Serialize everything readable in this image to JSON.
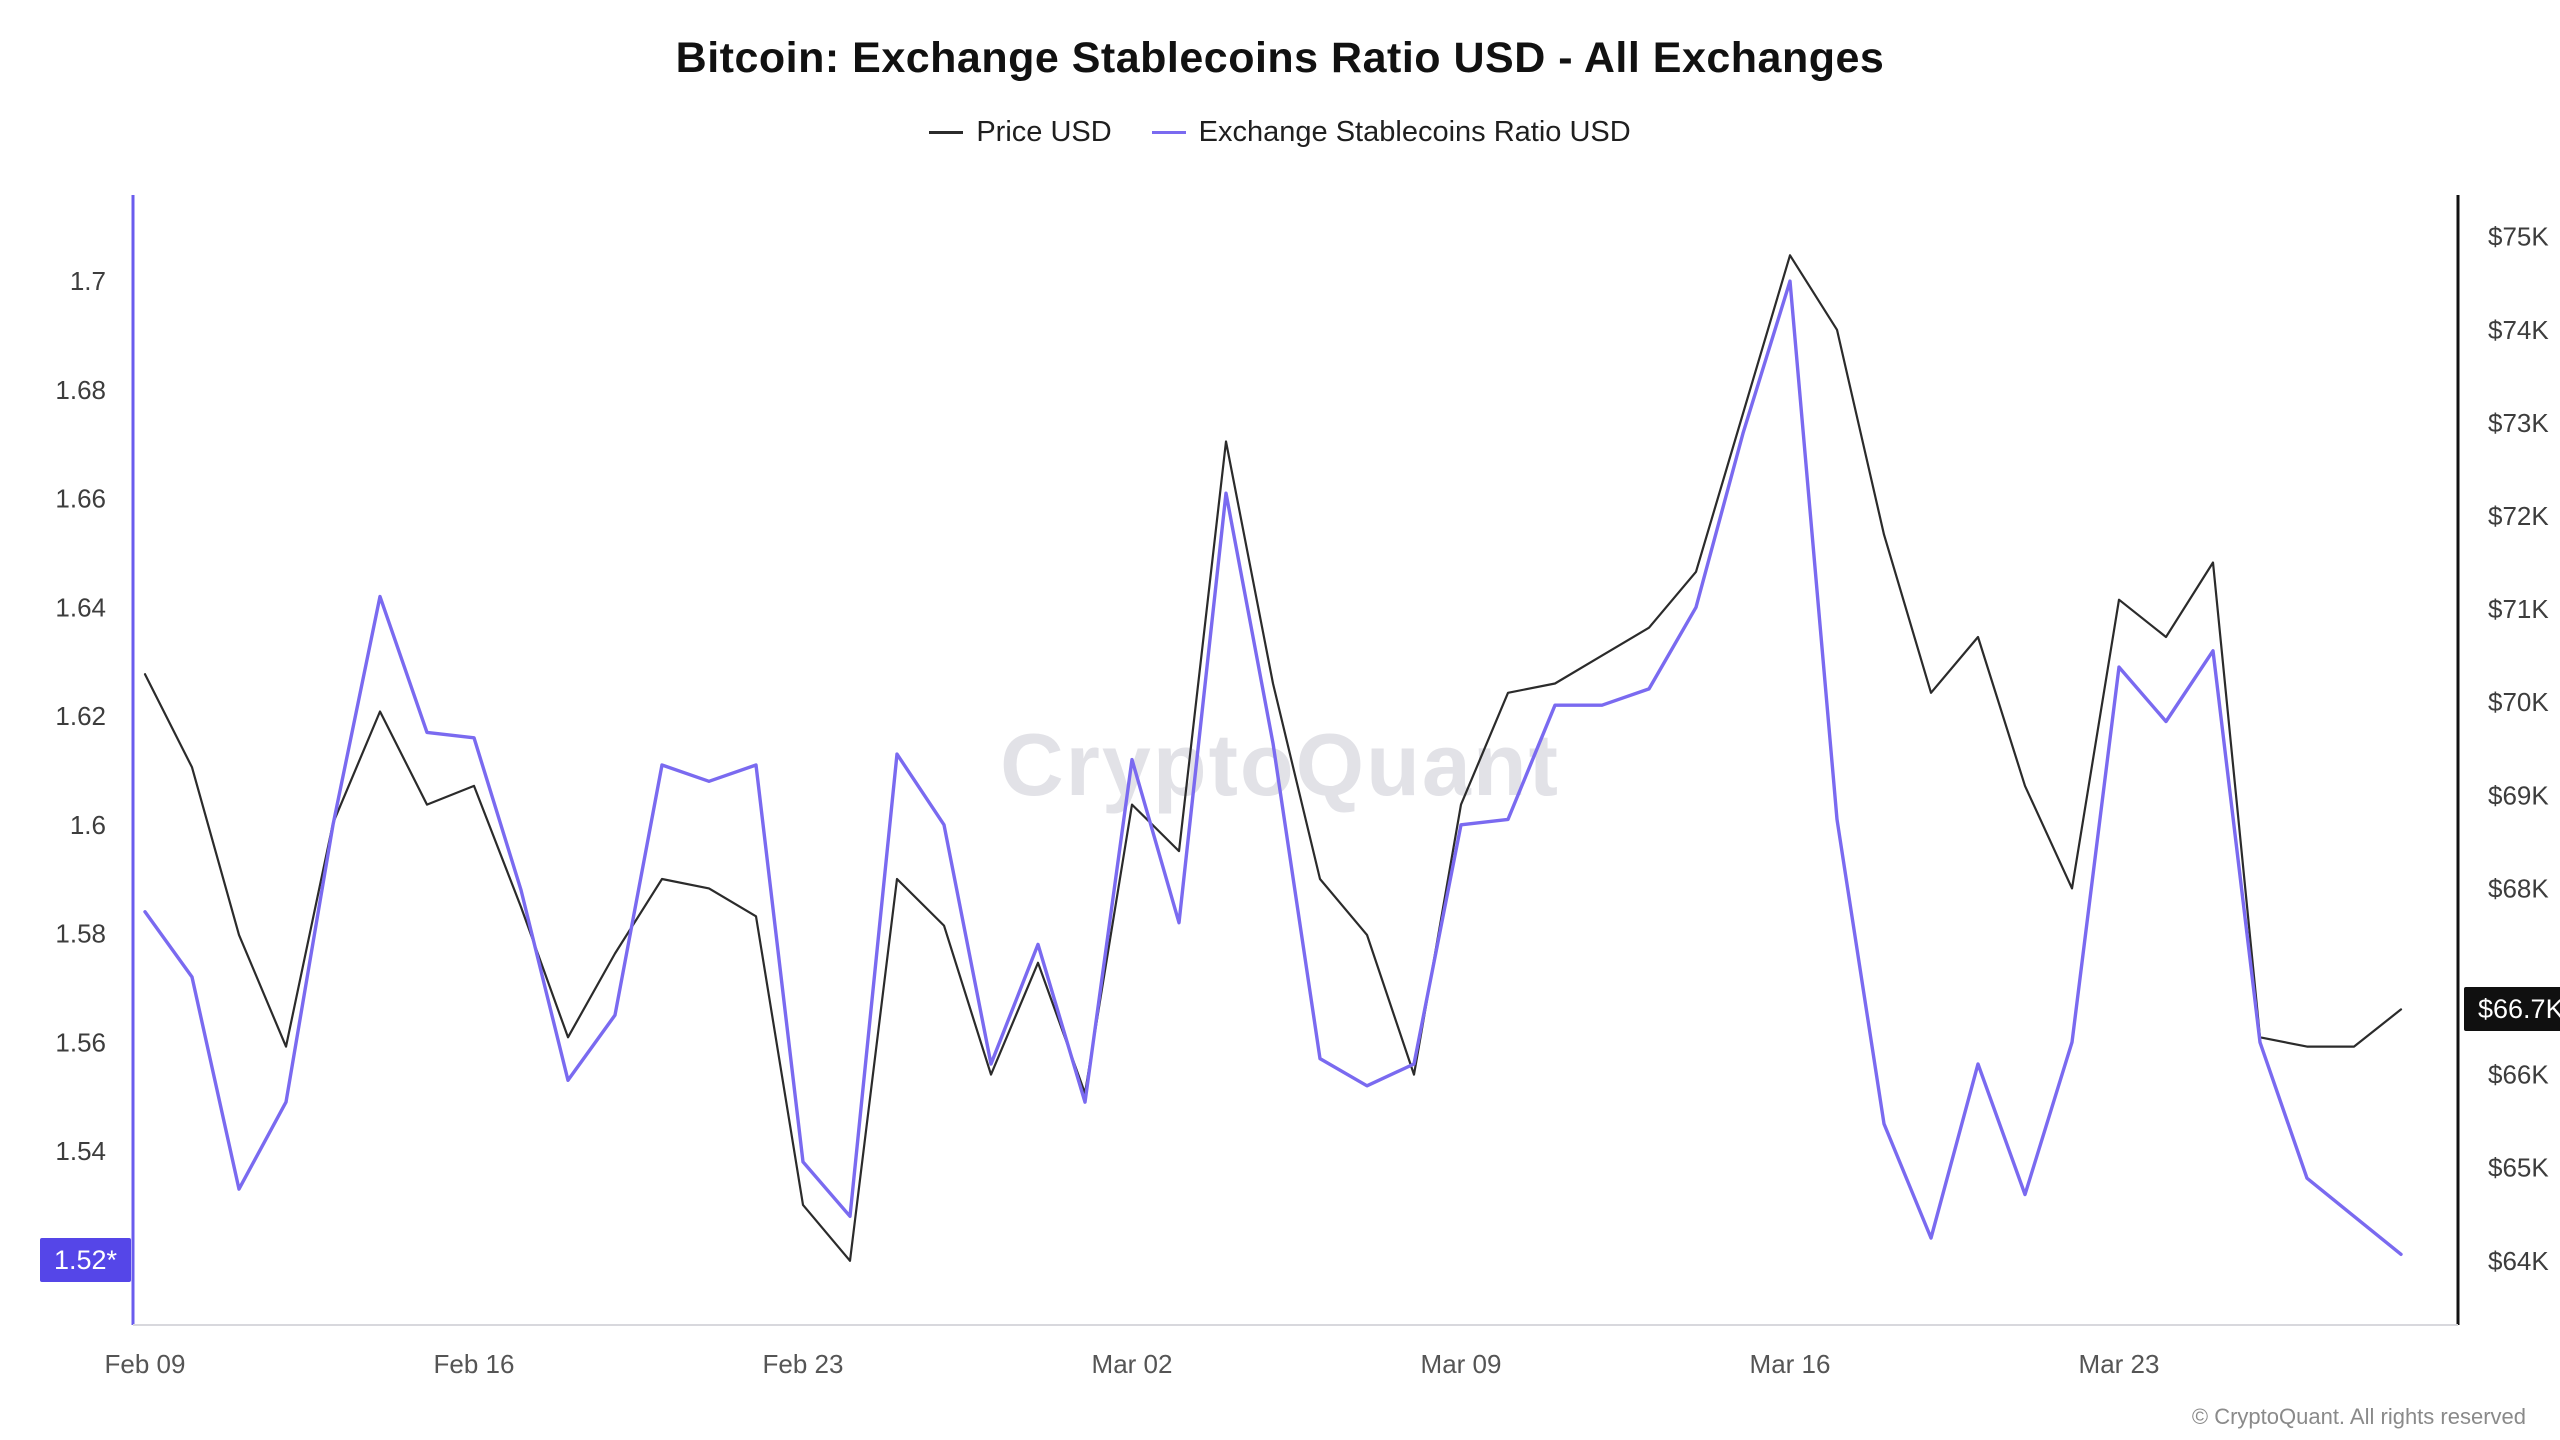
{
  "watermark": "CryptoQuant",
  "copyright": "© CryptoQuant. All rights reserved",
  "chart_data": {
    "type": "line",
    "title": "Bitcoin: Exchange Stablecoins Ratio USD - All Exchanges",
    "grid": false,
    "legend_position": "top",
    "x_dates": [
      "Feb 09",
      "Feb 10",
      "Feb 11",
      "Feb 12",
      "Feb 13",
      "Feb 14",
      "Feb 15",
      "Feb 16",
      "Feb 17",
      "Feb 18",
      "Feb 19",
      "Feb 20",
      "Feb 21",
      "Feb 22",
      "Feb 23",
      "Feb 24",
      "Feb 25",
      "Feb 26",
      "Feb 27",
      "Feb 28",
      "Mar 01",
      "Mar 02",
      "Mar 03",
      "Mar 04",
      "Mar 05",
      "Mar 06",
      "Mar 07",
      "Mar 08",
      "Mar 09",
      "Mar 10",
      "Mar 11",
      "Mar 12",
      "Mar 13",
      "Mar 14",
      "Mar 15",
      "Mar 16",
      "Mar 17",
      "Mar 18",
      "Mar 19",
      "Mar 20",
      "Mar 21",
      "Mar 22",
      "Mar 23",
      "Mar 24",
      "Mar 25",
      "Mar 26",
      "Mar 27",
      "Mar 28",
      "Mar 29"
    ],
    "x_ticks": {
      "indices": [
        0,
        7,
        14,
        21,
        28,
        35,
        42
      ],
      "labels": [
        "Feb 09",
        "Feb 16",
        "Feb 23",
        "Mar 02",
        "Mar 09",
        "Mar 16",
        "Mar 23"
      ]
    },
    "series": [
      {
        "name": "Price USD",
        "axis": "right",
        "unit": "USD (thousands)",
        "color": "#2b2b2b",
        "stroke_width": 2.2,
        "values": [
          70.3,
          69.3,
          67.5,
          66.3,
          68.7,
          69.9,
          68.9,
          69.1,
          67.8,
          66.4,
          67.3,
          68.1,
          68.0,
          67.7,
          64.6,
          64.0,
          68.1,
          67.6,
          66.0,
          67.2,
          65.8,
          68.9,
          68.4,
          72.8,
          70.2,
          68.1,
          67.5,
          66.0,
          68.9,
          70.1,
          70.2,
          70.5,
          70.8,
          71.4,
          73.1,
          74.8,
          74.0,
          71.8,
          70.1,
          70.7,
          69.1,
          68.0,
          71.1,
          70.7,
          71.5,
          66.4,
          66.3,
          66.3,
          66.7
        ]
      },
      {
        "name": "Exchange Stablecoins Ratio USD",
        "axis": "left",
        "unit": "ratio",
        "color": "#7a6af0",
        "stroke_width": 3.4,
        "values": [
          1.584,
          1.572,
          1.533,
          1.549,
          1.6,
          1.642,
          1.617,
          1.616,
          1.588,
          1.553,
          1.565,
          1.611,
          1.608,
          1.611,
          1.538,
          1.528,
          1.613,
          1.6,
          1.556,
          1.578,
          1.549,
          1.612,
          1.582,
          1.661,
          1.615,
          1.557,
          1.552,
          1.556,
          1.6,
          1.601,
          1.622,
          1.622,
          1.625,
          1.64,
          1.672,
          1.7,
          1.601,
          1.545,
          1.524,
          1.556,
          1.532,
          1.56,
          1.629,
          1.619,
          1.632,
          1.56,
          1.535,
          1.528,
          1.521
        ]
      }
    ],
    "left_axis": {
      "min": 1.508,
      "max": 1.714,
      "axis_color": "#6a5cee",
      "ticks": [
        {
          "label": "1.7",
          "value": 1.7
        },
        {
          "label": "1.68",
          "value": 1.68
        },
        {
          "label": "1.66",
          "value": 1.66
        },
        {
          "label": "1.64",
          "value": 1.64
        },
        {
          "label": "1.62",
          "value": 1.62
        },
        {
          "label": "1.6",
          "value": 1.6
        },
        {
          "label": "1.58",
          "value": 1.58
        },
        {
          "label": "1.56",
          "value": 1.56
        },
        {
          "label": "1.54",
          "value": 1.54
        }
      ]
    },
    "right_axis": {
      "min": 63.31,
      "max": 75.34,
      "axis_color": "#111111",
      "ticks": [
        {
          "label": "$75K",
          "value": 75
        },
        {
          "label": "$74K",
          "value": 74
        },
        {
          "label": "$73K",
          "value": 73
        },
        {
          "label": "$72K",
          "value": 72
        },
        {
          "label": "$71K",
          "value": 71
        },
        {
          "label": "$70K",
          "value": 70
        },
        {
          "label": "$69K",
          "value": 69
        },
        {
          "label": "$68K",
          "value": 68
        },
        {
          "label": "$66K",
          "value": 66
        },
        {
          "label": "$65K",
          "value": 65
        },
        {
          "label": "$64K",
          "value": 64
        }
      ]
    },
    "badges": {
      "left": {
        "label": "1.52*",
        "value": 1.52,
        "bg": "#5546e8"
      },
      "right": {
        "label": "$66.7K",
        "value": 66.7,
        "bg": "#101010"
      }
    }
  }
}
